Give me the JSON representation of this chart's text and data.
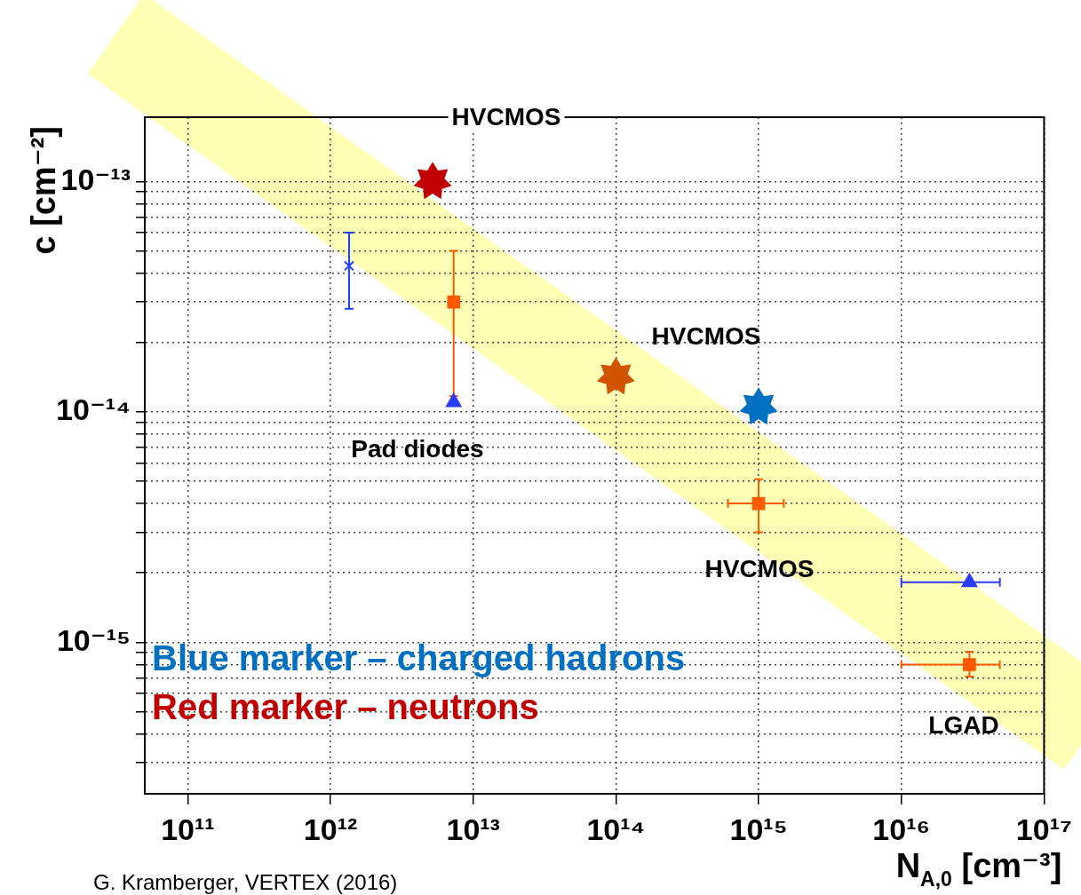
{
  "chart_data": {
    "type": "scatter",
    "xlabel": "N$_{A,0}$ [cm⁻³]",
    "ylabel": "c [cm⁻²]",
    "log": "xy",
    "grid": true,
    "legend": "bottom left",
    "xlim": [
      50000000000.0,
      1e+17
    ],
    "ylim": [
      2.2e-16,
      1.9e-13
    ],
    "xticks": [
      {
        "value": 100000000000.0,
        "label": "10¹¹"
      },
      {
        "value": 1000000000000.0,
        "label": "10¹²"
      },
      {
        "value": 10000000000000.0,
        "label": "10¹³"
      },
      {
        "value": 100000000000000.0,
        "label": "10¹⁴"
      },
      {
        "value": 1000000000000000.0,
        "label": "10¹⁵"
      },
      {
        "value": 1e+16,
        "label": "10¹⁶"
      },
      {
        "value": 1e+17,
        "label": "10¹⁷"
      }
    ],
    "yticks": [
      {
        "value": 3e-16,
        "label": null
      },
      {
        "value": 4e-16,
        "label": null
      },
      {
        "value": 5e-16,
        "label": null
      },
      {
        "value": 6e-16,
        "label": null
      },
      {
        "value": 7e-16,
        "label": null
      },
      {
        "value": 8e-16,
        "label": null
      },
      {
        "value": 9e-16,
        "label": null
      },
      {
        "value": 1e-15,
        "label": "10⁻¹⁵"
      },
      {
        "value": 2e-15,
        "label": null
      },
      {
        "value": 3e-15,
        "label": null
      },
      {
        "value": 4e-15,
        "label": null
      },
      {
        "value": 5e-15,
        "label": null
      },
      {
        "value": 6e-15,
        "label": null
      },
      {
        "value": 7e-15,
        "label": null
      },
      {
        "value": 8e-15,
        "label": null
      },
      {
        "value": 9e-15,
        "label": null
      },
      {
        "value": 1e-14,
        "label": "10⁻¹⁴"
      },
      {
        "value": 2e-14,
        "label": null
      },
      {
        "value": 3e-14,
        "label": null
      },
      {
        "value": 4e-14,
        "label": null
      },
      {
        "value": 5e-14,
        "label": null
      },
      {
        "value": 6e-14,
        "label": null
      },
      {
        "value": 7e-14,
        "label": null
      },
      {
        "value": 8e-14,
        "label": null
      },
      {
        "value": 9e-14,
        "label": null
      },
      {
        "value": 1e-13,
        "label": "10⁻¹³"
      }
    ],
    "series": [
      {
        "name": "Blue marker – charged hadrons",
        "marker": "star",
        "color": "#0070c0",
        "x": [
          1000000000000000.0
        ],
        "values": [
          1.05e-14
        ]
      },
      {
        "marker": "cross",
        "color": "#1f3fff",
        "x": [
          1350000000000.0
        ],
        "values": [
          4.3e-14
        ],
        "errors": [
          [
            2.8e-14,
            6e-14
          ]
        ]
      },
      {
        "marker": "triangle",
        "color": "#2a3cff",
        "x": [
          7300000000000.0,
          3e+16
        ],
        "values": [
          1.1e-14,
          1.82e-15
        ],
        "xerrors": [
          null,
          [
            1e+16,
            4.9e+16
          ]
        ]
      },
      {
        "name": "Red marker – neutrons",
        "marker": "star",
        "color": "#c00000",
        "colors": [
          "#c00000",
          "#d35400"
        ],
        "x": [
          5200000000000.0,
          100000000000000.0
        ],
        "values": [
          1e-13,
          1.42e-14
        ]
      },
      {
        "marker": "square",
        "color": "#ff5a00",
        "x": [
          7300000000000.0,
          1000000000000000.0,
          3e+16
        ],
        "values": [
          3e-14,
          4e-15,
          8e-16
        ],
        "errors": [
          [
            1.17e-14,
            5e-14
          ],
          [
            3e-15,
            5.1e-15
          ],
          [
            7.1e-16,
            9.1e-16
          ]
        ],
        "xerrors": [
          null,
          [
            610000000000000.0,
            1500000000000000.0
          ],
          [
            1e+16,
            4.9e+16
          ]
        ]
      }
    ],
    "annotations": [
      "HVCMOS",
      "HVCMOS",
      "Pad diodes",
      "HVCMOS",
      "LGAD",
      "G. Kramberger, VERTEX (2016)"
    ]
  }
}
